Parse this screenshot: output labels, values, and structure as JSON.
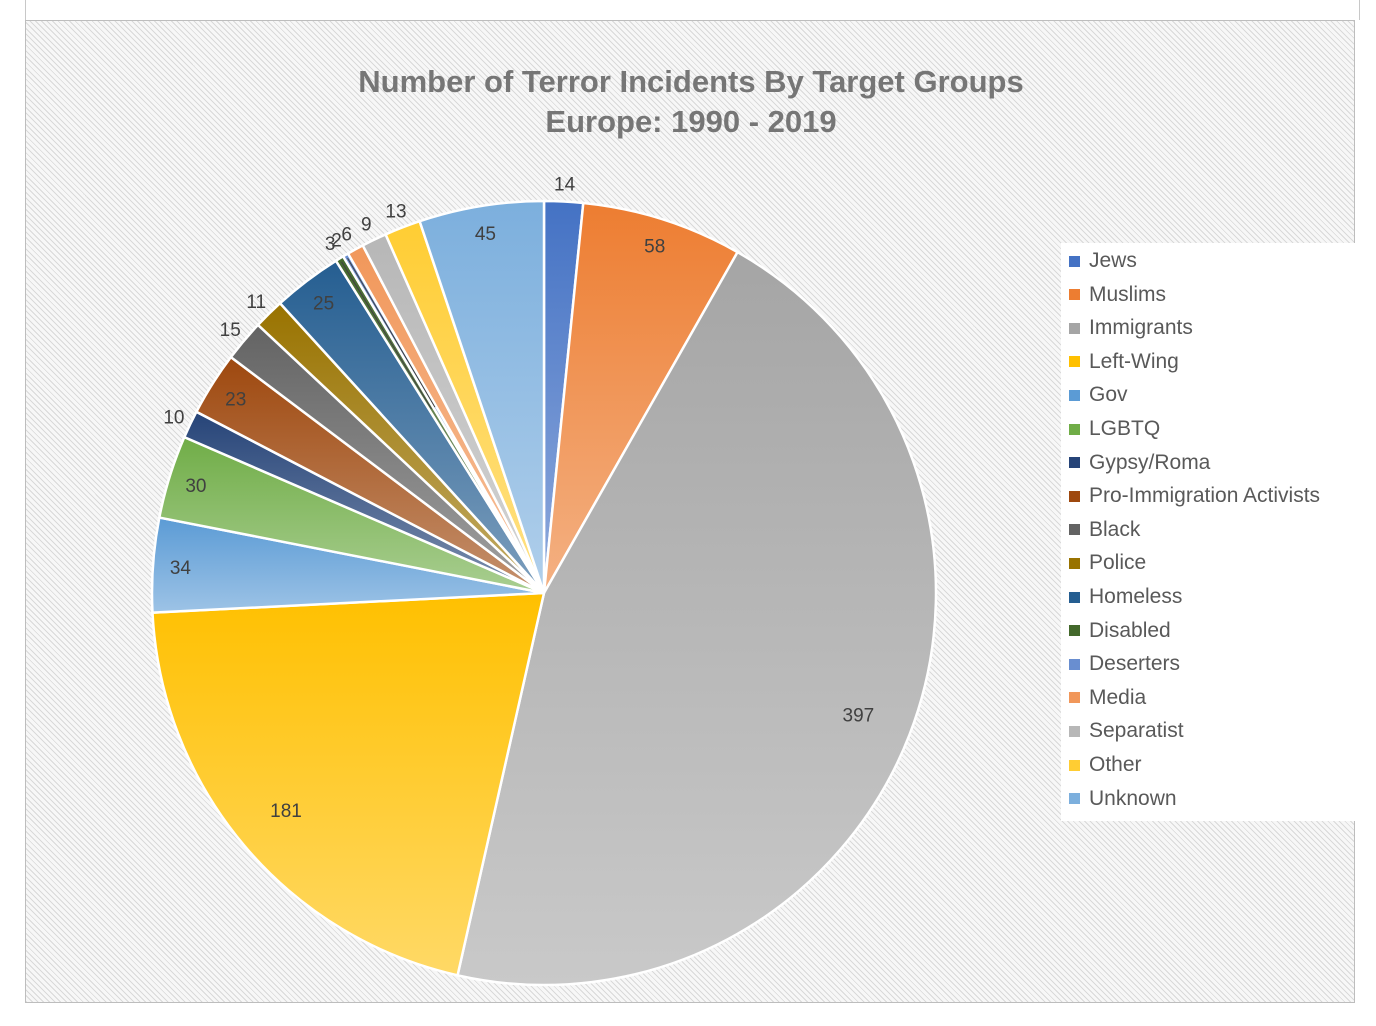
{
  "chart_data": {
    "type": "pie",
    "title": "Number of Terror Incidents By Target Groups",
    "subtitle": "Europe: 1990 - 2019",
    "categories": [
      "Jews",
      "Muslims",
      "Immigrants",
      "Left-Wing",
      "Gov",
      "LGBTQ",
      "Gypsy/Roma",
      "Pro-Immigration Activists",
      "Black",
      "Police",
      "Homeless",
      "Disabled",
      "Deserters",
      "Media",
      "Separatist",
      "Other",
      "Unknown"
    ],
    "values": [
      14,
      58,
      397,
      181,
      34,
      30,
      10,
      23,
      15,
      11,
      25,
      3,
      2,
      6,
      9,
      13,
      45
    ],
    "labels": [
      "14",
      "58",
      "397",
      "181",
      "34",
      "30",
      "10",
      "23",
      "15",
      "11",
      "25",
      "3",
      "2",
      "6",
      "9",
      "13",
      "45"
    ],
    "colors": [
      "#4472c4",
      "#ed7d31",
      "#a5a5a5",
      "#ffc000",
      "#5b9bd5",
      "#70ad47",
      "#264478",
      "#9e480e",
      "#636363",
      "#997300",
      "#255e91",
      "#43682b",
      "#698ed0",
      "#f1975a",
      "#b7b7b7",
      "#ffcd33",
      "#7cafdd"
    ],
    "legend_position": "right",
    "start_angle_deg": 0,
    "direction": "clockwise"
  }
}
